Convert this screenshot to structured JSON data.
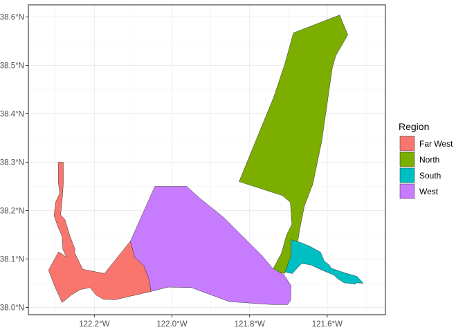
{
  "chart_data": {
    "type": "map",
    "title": "",
    "xlabel": "",
    "ylabel": "",
    "xlim": [
      -122.37,
      -121.45
    ],
    "ylim": [
      37.985,
      38.625
    ],
    "grid": true,
    "x_ticks": [
      {
        "value": -122.2,
        "label": "122.2°W"
      },
      {
        "value": -122.0,
        "label": "122.0°W"
      },
      {
        "value": -121.8,
        "label": "121.8°W"
      },
      {
        "value": -121.6,
        "label": "121.6°W"
      }
    ],
    "y_ticks": [
      {
        "value": 38.0,
        "label": "38.0°N"
      },
      {
        "value": 38.1,
        "label": "38.1°N"
      },
      {
        "value": 38.2,
        "label": "38.2°N"
      },
      {
        "value": 38.3,
        "label": "38.3°N"
      },
      {
        "value": 38.4,
        "label": "38.4°N"
      },
      {
        "value": 38.5,
        "label": "38.5°N"
      },
      {
        "value": 38.6,
        "label": "38.6°N"
      }
    ],
    "legend": {
      "title": "Region",
      "position": "right",
      "entries": [
        {
          "name": "Far West",
          "color": "#F8766D"
        },
        {
          "name": "North",
          "color": "#7CAE00"
        },
        {
          "name": "South",
          "color": "#00BFC4"
        },
        {
          "name": "West",
          "color": "#C77CFF"
        }
      ]
    },
    "regions": [
      {
        "name": "North",
        "color": "#7CAE00",
        "coords": [
          [
            -121.687,
            38.567
          ],
          [
            -121.568,
            38.604
          ],
          [
            -121.547,
            38.563
          ],
          [
            -121.578,
            38.52
          ],
          [
            -121.587,
            38.495
          ],
          [
            -121.614,
            38.344
          ],
          [
            -121.637,
            38.255
          ],
          [
            -121.659,
            38.209
          ],
          [
            -121.67,
            38.165
          ],
          [
            -121.676,
            38.135
          ],
          [
            -121.71,
            38.07
          ],
          [
            -121.721,
            38.072
          ],
          [
            -121.741,
            38.077
          ],
          [
            -121.718,
            38.112
          ],
          [
            -121.705,
            38.149
          ],
          [
            -121.691,
            38.172
          ],
          [
            -121.695,
            38.217
          ],
          [
            -121.715,
            38.231
          ],
          [
            -121.827,
            38.26
          ],
          [
            -121.783,
            38.346
          ],
          [
            -121.738,
            38.434
          ],
          [
            -121.71,
            38.501
          ]
        ]
      },
      {
        "name": "South",
        "color": "#00BFC4",
        "coords": [
          [
            -121.693,
            38.14
          ],
          [
            -121.668,
            38.134
          ],
          [
            -121.644,
            38.126
          ],
          [
            -121.617,
            38.114
          ],
          [
            -121.608,
            38.096
          ],
          [
            -121.594,
            38.087
          ],
          [
            -121.59,
            38.081
          ],
          [
            -121.568,
            38.075
          ],
          [
            -121.553,
            38.071
          ],
          [
            -121.523,
            38.064
          ],
          [
            -121.507,
            38.05
          ],
          [
            -121.526,
            38.051
          ],
          [
            -121.527,
            38.048
          ],
          [
            -121.557,
            38.051
          ],
          [
            -121.574,
            38.06
          ],
          [
            -121.583,
            38.067
          ],
          [
            -121.616,
            38.078
          ],
          [
            -121.643,
            38.088
          ],
          [
            -121.666,
            38.091
          ],
          [
            -121.69,
            38.07
          ],
          [
            -121.708,
            38.073
          ],
          [
            -121.699,
            38.095
          ],
          [
            -121.693,
            38.106
          ]
        ]
      },
      {
        "name": "West",
        "color": "#C77CFF",
        "coords": [
          [
            -122.044,
            38.25
          ],
          [
            -121.962,
            38.25
          ],
          [
            -121.929,
            38.226
          ],
          [
            -121.867,
            38.186
          ],
          [
            -121.767,
            38.106
          ],
          [
            -121.742,
            38.082
          ],
          [
            -121.711,
            38.067
          ],
          [
            -121.693,
            38.045
          ],
          [
            -121.694,
            38.015
          ],
          [
            -121.702,
            38.006
          ],
          [
            -121.743,
            38.006
          ],
          [
            -121.852,
            38.012
          ],
          [
            -121.95,
            38.041
          ],
          [
            -122.01,
            38.042
          ],
          [
            -122.054,
            38.033
          ],
          [
            -122.059,
            38.058
          ],
          [
            -122.072,
            38.086
          ],
          [
            -122.096,
            38.103
          ],
          [
            -122.107,
            38.137
          ]
        ]
      },
      {
        "name": "Far West",
        "color": "#F8766D",
        "coords": [
          [
            -122.293,
            38.3
          ],
          [
            -122.28,
            38.3
          ],
          [
            -122.28,
            38.256
          ],
          [
            -122.283,
            38.222
          ],
          [
            -122.287,
            38.191
          ],
          [
            -122.276,
            38.182
          ],
          [
            -122.264,
            38.15
          ],
          [
            -122.249,
            38.118
          ],
          [
            -122.252,
            38.115
          ],
          [
            -122.23,
            38.079
          ],
          [
            -122.174,
            38.07
          ],
          [
            -122.107,
            38.137
          ],
          [
            -122.096,
            38.103
          ],
          [
            -122.072,
            38.086
          ],
          [
            -122.059,
            38.058
          ],
          [
            -122.054,
            38.033
          ],
          [
            -122.146,
            38.016
          ],
          [
            -122.177,
            38.017
          ],
          [
            -122.196,
            38.026
          ],
          [
            -122.211,
            38.041
          ],
          [
            -122.236,
            38.037
          ],
          [
            -122.259,
            38.026
          ],
          [
            -122.283,
            38.01
          ],
          [
            -122.303,
            38.045
          ],
          [
            -122.318,
            38.077
          ],
          [
            -122.292,
            38.115
          ],
          [
            -122.272,
            38.104
          ],
          [
            -122.281,
            38.12
          ],
          [
            -122.283,
            38.147
          ],
          [
            -122.294,
            38.167
          ],
          [
            -122.304,
            38.19
          ],
          [
            -122.299,
            38.219
          ],
          [
            -122.289,
            38.236
          ],
          [
            -122.293,
            38.259
          ]
        ]
      }
    ]
  }
}
